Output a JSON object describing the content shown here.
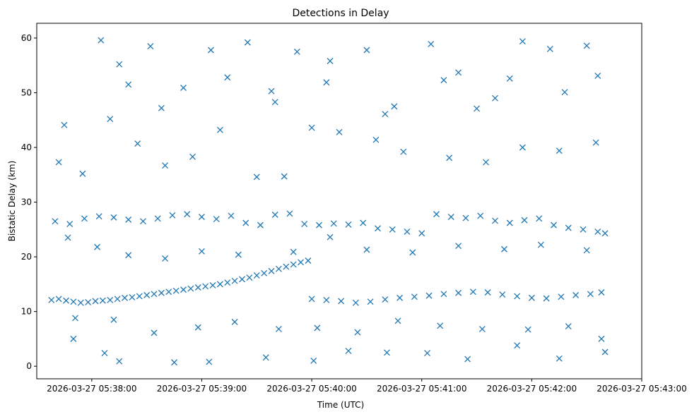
{
  "chart_data": {
    "type": "scatter",
    "title": "Detections in Delay",
    "xlabel": "Time (UTC)",
    "ylabel": "Bistatic Delay (km)",
    "x_axis_type": "time",
    "xlim": [
      "2026-03-27 05:37:30",
      "2026-03-27 05:43:00"
    ],
    "ylim": [
      -2.3,
      62.7
    ],
    "xticks": [
      "2026-03-27 05:38:00",
      "2026-03-27 05:39:00",
      "2026-03-27 05:40:00",
      "2026-03-27 05:41:00",
      "2026-03-27 05:42:00",
      "2026-03-27 05:43:00"
    ],
    "yticks": [
      0,
      10,
      20,
      30,
      40,
      50,
      60
    ],
    "grid": false,
    "legend": "none",
    "marker": "x",
    "color": "#1f77b4",
    "data_series_note_removed": true,
    "series": [
      {
        "description_removed": true,
        "points": [
          [
            "05:37:38",
            12.1
          ],
          [
            "05:37:42",
            12.3
          ],
          [
            "05:37:46",
            12.0
          ],
          [
            "05:37:50",
            11.8
          ],
          [
            "05:37:54",
            11.6
          ],
          [
            "05:37:58",
            11.7
          ],
          [
            "05:38:02",
            11.9
          ],
          [
            "05:38:06",
            12.0
          ],
          [
            "05:38:10",
            12.1
          ],
          [
            "05:38:14",
            12.3
          ],
          [
            "05:38:18",
            12.5
          ],
          [
            "05:38:22",
            12.6
          ],
          [
            "05:38:26",
            12.8
          ],
          [
            "05:38:30",
            13.0
          ],
          [
            "05:38:34",
            13.2
          ],
          [
            "05:38:38",
            13.4
          ],
          [
            "05:38:42",
            13.6
          ],
          [
            "05:38:46",
            13.8
          ],
          [
            "05:38:50",
            14.0
          ],
          [
            "05:38:54",
            14.2
          ],
          [
            "05:38:58",
            14.4
          ],
          [
            "05:39:02",
            14.6
          ],
          [
            "05:39:06",
            14.8
          ],
          [
            "05:39:10",
            15.0
          ],
          [
            "05:39:14",
            15.3
          ],
          [
            "05:39:18",
            15.6
          ],
          [
            "05:39:22",
            15.9
          ],
          [
            "05:39:26",
            16.2
          ],
          [
            "05:39:30",
            16.6
          ],
          [
            "05:39:34",
            17.0
          ],
          [
            "05:39:38",
            17.4
          ],
          [
            "05:39:42",
            17.8
          ],
          [
            "05:39:46",
            18.2
          ],
          [
            "05:39:50",
            18.6
          ],
          [
            "05:39:54",
            19.0
          ],
          [
            "05:39:58",
            19.3
          ],
          [
            "05:37:40",
            26.5
          ],
          [
            "05:37:48",
            26.0
          ],
          [
            "05:37:56",
            27.0
          ],
          [
            "05:38:04",
            27.4
          ],
          [
            "05:38:12",
            27.2
          ],
          [
            "05:38:20",
            26.8
          ],
          [
            "05:38:28",
            26.5
          ],
          [
            "05:38:36",
            27.0
          ],
          [
            "05:38:44",
            27.6
          ],
          [
            "05:38:52",
            27.8
          ],
          [
            "05:39:00",
            27.3
          ],
          [
            "05:39:08",
            26.9
          ],
          [
            "05:39:16",
            27.5
          ],
          [
            "05:39:24",
            26.2
          ],
          [
            "05:39:32",
            25.8
          ],
          [
            "05:39:40",
            27.7
          ],
          [
            "05:39:48",
            27.9
          ],
          [
            "05:39:56",
            26.0
          ],
          [
            "05:40:04",
            25.8
          ],
          [
            "05:40:12",
            26.1
          ],
          [
            "05:40:20",
            25.9
          ],
          [
            "05:40:28",
            26.2
          ],
          [
            "05:40:36",
            25.2
          ],
          [
            "05:40:44",
            25.0
          ],
          [
            "05:40:52",
            24.6
          ],
          [
            "05:41:00",
            24.3
          ],
          [
            "05:41:08",
            27.8
          ],
          [
            "05:41:16",
            27.3
          ],
          [
            "05:41:24",
            27.1
          ],
          [
            "05:41:32",
            27.5
          ],
          [
            "05:41:40",
            26.6
          ],
          [
            "05:41:48",
            26.2
          ],
          [
            "05:41:56",
            26.7
          ],
          [
            "05:42:04",
            27.0
          ],
          [
            "05:42:12",
            25.8
          ],
          [
            "05:42:20",
            25.3
          ],
          [
            "05:42:28",
            25.0
          ],
          [
            "05:42:36",
            24.6
          ],
          [
            "05:42:40",
            24.3
          ],
          [
            "05:40:00",
            12.3
          ],
          [
            "05:40:08",
            12.1
          ],
          [
            "05:40:16",
            11.9
          ],
          [
            "05:40:24",
            11.6
          ],
          [
            "05:40:32",
            11.8
          ],
          [
            "05:40:40",
            12.2
          ],
          [
            "05:40:48",
            12.5
          ],
          [
            "05:40:56",
            12.7
          ],
          [
            "05:41:04",
            12.9
          ],
          [
            "05:41:12",
            13.2
          ],
          [
            "05:41:20",
            13.4
          ],
          [
            "05:41:28",
            13.6
          ],
          [
            "05:41:36",
            13.5
          ],
          [
            "05:41:44",
            13.1
          ],
          [
            "05:41:52",
            12.8
          ],
          [
            "05:42:00",
            12.5
          ],
          [
            "05:42:08",
            12.4
          ],
          [
            "05:42:16",
            12.7
          ],
          [
            "05:42:24",
            13.0
          ],
          [
            "05:42:32",
            13.2
          ],
          [
            "05:42:38",
            13.5
          ],
          [
            "05:37:45",
            44.1
          ],
          [
            "05:38:05",
            59.6
          ],
          [
            "05:38:15",
            55.2
          ],
          [
            "05:38:32",
            58.5
          ],
          [
            "05:38:50",
            50.9
          ],
          [
            "05:39:05",
            57.8
          ],
          [
            "05:39:25",
            59.2
          ],
          [
            "05:39:40",
            48.3
          ],
          [
            "05:39:52",
            57.5
          ],
          [
            "05:40:10",
            55.8
          ],
          [
            "05:40:30",
            57.8
          ],
          [
            "05:40:45",
            47.5
          ],
          [
            "05:41:05",
            58.9
          ],
          [
            "05:41:20",
            53.7
          ],
          [
            "05:41:40",
            49.0
          ],
          [
            "05:41:55",
            59.4
          ],
          [
            "05:42:10",
            58.0
          ],
          [
            "05:42:30",
            58.6
          ],
          [
            "05:37:50",
            5.0
          ],
          [
            "05:38:07",
            2.4
          ],
          [
            "05:38:15",
            0.9
          ],
          [
            "05:38:45",
            0.7
          ],
          [
            "05:39:04",
            0.8
          ],
          [
            "05:39:35",
            1.6
          ],
          [
            "05:40:01",
            1.0
          ],
          [
            "05:40:20",
            2.8
          ],
          [
            "05:40:41",
            2.5
          ],
          [
            "05:41:03",
            2.4
          ],
          [
            "05:41:25",
            1.3
          ],
          [
            "05:41:52",
            3.8
          ],
          [
            "05:42:15",
            1.4
          ],
          [
            "05:42:40",
            2.6
          ],
          [
            "05:37:42",
            37.3
          ],
          [
            "05:37:55",
            35.2
          ],
          [
            "05:38:10",
            45.2
          ],
          [
            "05:38:25",
            40.7
          ],
          [
            "05:38:40",
            36.7
          ],
          [
            "05:38:55",
            38.3
          ],
          [
            "05:39:10",
            43.2
          ],
          [
            "05:39:30",
            34.6
          ],
          [
            "05:39:45",
            34.7
          ],
          [
            "05:40:00",
            43.6
          ],
          [
            "05:40:15",
            42.8
          ],
          [
            "05:40:35",
            41.4
          ],
          [
            "05:40:50",
            39.2
          ],
          [
            "05:41:15",
            38.1
          ],
          [
            "05:41:35",
            37.3
          ],
          [
            "05:41:55",
            40.0
          ],
          [
            "05:42:15",
            39.4
          ],
          [
            "05:42:35",
            40.9
          ],
          [
            "05:37:47",
            23.5
          ],
          [
            "05:38:03",
            21.8
          ],
          [
            "05:38:20",
            20.3
          ],
          [
            "05:38:40",
            19.7
          ],
          [
            "05:39:00",
            21.0
          ],
          [
            "05:39:20",
            20.4
          ],
          [
            "05:39:50",
            20.9
          ],
          [
            "05:40:10",
            23.6
          ],
          [
            "05:40:30",
            21.3
          ],
          [
            "05:40:55",
            20.8
          ],
          [
            "05:41:20",
            22.0
          ],
          [
            "05:41:45",
            21.4
          ],
          [
            "05:42:05",
            22.2
          ],
          [
            "05:42:30",
            21.2
          ],
          [
            "05:37:51",
            8.8
          ],
          [
            "05:38:12",
            8.5
          ],
          [
            "05:38:34",
            6.1
          ],
          [
            "05:38:58",
            7.1
          ],
          [
            "05:39:18",
            8.1
          ],
          [
            "05:39:42",
            6.8
          ],
          [
            "05:40:03",
            7.0
          ],
          [
            "05:40:25",
            6.2
          ],
          [
            "05:40:47",
            8.3
          ],
          [
            "05:41:10",
            7.4
          ],
          [
            "05:41:33",
            6.8
          ],
          [
            "05:41:58",
            6.7
          ],
          [
            "05:42:20",
            7.3
          ],
          [
            "05:42:38",
            5.0
          ],
          [
            "05:38:20",
            51.5
          ],
          [
            "05:38:38",
            47.2
          ],
          [
            "05:39:14",
            52.8
          ],
          [
            "05:39:38",
            50.3
          ],
          [
            "05:40:08",
            51.9
          ],
          [
            "05:40:40",
            46.1
          ],
          [
            "05:41:12",
            52.3
          ],
          [
            "05:41:30",
            47.1
          ],
          [
            "05:41:48",
            52.6
          ],
          [
            "05:42:18",
            50.1
          ],
          [
            "05:42:36",
            53.1
          ]
        ]
      }
    ]
  }
}
